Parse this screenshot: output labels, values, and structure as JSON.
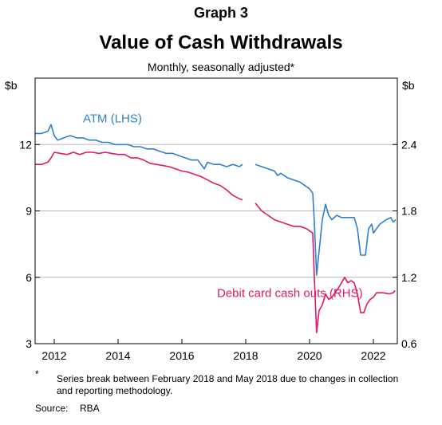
{
  "header": {
    "graph_number": "Graph 3",
    "title": "Value of Cash Withdrawals",
    "subtitle": "Monthly, seasonally adjusted*"
  },
  "footnote": {
    "marker": "*",
    "text": "Series break between February 2018 and May 2018 due to changes in collection and reporting methodology."
  },
  "source": {
    "label": "Source:",
    "text": "RBA"
  },
  "chart_data": {
    "type": "line",
    "title": "Value of Cash Withdrawals",
    "subtitle": "Monthly, seasonally adjusted*",
    "x_range": [
      2011.4,
      2022.75
    ],
    "x_ticks": [
      2012,
      2014,
      2016,
      2018,
      2020,
      2022
    ],
    "x_tick_labels": [
      "2012",
      "2014",
      "2016",
      "2018",
      "2020",
      "2022"
    ],
    "left_axis": {
      "unit": "$b",
      "range": [
        3,
        15
      ],
      "ticks": [
        3,
        6,
        9,
        12
      ],
      "tick_labels": [
        "3",
        "6",
        "9",
        "12"
      ]
    },
    "right_axis": {
      "unit": "$b",
      "range": [
        0.6,
        3.0
      ],
      "ticks": [
        0.6,
        1.2,
        1.8,
        2.4
      ],
      "tick_labels": [
        "0.6",
        "1.2",
        "1.8",
        "2.4"
      ]
    },
    "grid": true,
    "colors": {
      "atm": "#2f80d0",
      "debit": "#e0186b",
      "grid": "#b8b8b8"
    },
    "series": [
      {
        "name": "ATM (LHS)",
        "axis": "left",
        "color": "#2f80d0",
        "segments": [
          [
            [
              2011.4,
              12.5
            ],
            [
              2011.6,
              12.5
            ],
            [
              2011.8,
              12.6
            ],
            [
              2011.9,
              12.9
            ],
            [
              2012.0,
              12.4
            ],
            [
              2012.1,
              12.2
            ],
            [
              2012.3,
              12.3
            ],
            [
              2012.5,
              12.4
            ],
            [
              2012.7,
              12.3
            ],
            [
              2012.9,
              12.3
            ],
            [
              2013.1,
              12.2
            ],
            [
              2013.3,
              12.2
            ],
            [
              2013.5,
              12.1
            ],
            [
              2013.7,
              12.1
            ],
            [
              2013.9,
              12.0
            ],
            [
              2014.1,
              12.0
            ],
            [
              2014.3,
              12.0
            ],
            [
              2014.5,
              11.9
            ],
            [
              2014.7,
              11.9
            ],
            [
              2014.9,
              11.8
            ],
            [
              2015.1,
              11.8
            ],
            [
              2015.3,
              11.7
            ],
            [
              2015.5,
              11.6
            ],
            [
              2015.7,
              11.6
            ],
            [
              2015.9,
              11.5
            ],
            [
              2016.1,
              11.4
            ],
            [
              2016.3,
              11.3
            ],
            [
              2016.5,
              11.3
            ],
            [
              2016.6,
              11.1
            ],
            [
              2016.7,
              10.9
            ],
            [
              2016.8,
              11.2
            ],
            [
              2017.0,
              11.1
            ],
            [
              2017.2,
              11.1
            ],
            [
              2017.4,
              11.0
            ],
            [
              2017.6,
              11.1
            ],
            [
              2017.8,
              11.0
            ],
            [
              2017.9,
              11.1
            ]
          ],
          [
            [
              2018.3,
              11.1
            ],
            [
              2018.5,
              11.0
            ],
            [
              2018.7,
              10.9
            ],
            [
              2018.9,
              10.8
            ],
            [
              2019.0,
              10.6
            ],
            [
              2019.1,
              10.7
            ],
            [
              2019.3,
              10.5
            ],
            [
              2019.5,
              10.4
            ],
            [
              2019.7,
              10.3
            ],
            [
              2019.9,
              10.1
            ],
            [
              2020.0,
              10.0
            ],
            [
              2020.1,
              9.8
            ],
            [
              2020.15,
              8.5
            ],
            [
              2020.22,
              6.1
            ],
            [
              2020.3,
              7.2
            ],
            [
              2020.4,
              8.6
            ],
            [
              2020.5,
              9.3
            ],
            [
              2020.6,
              8.8
            ],
            [
              2020.7,
              8.6
            ],
            [
              2020.85,
              8.8
            ],
            [
              2021.0,
              8.7
            ],
            [
              2021.2,
              8.7
            ],
            [
              2021.4,
              8.7
            ],
            [
              2021.5,
              8.2
            ],
            [
              2021.6,
              7.0
            ],
            [
              2021.75,
              7.0
            ],
            [
              2021.85,
              8.2
            ],
            [
              2021.95,
              8.4
            ],
            [
              2022.0,
              8.0
            ],
            [
              2022.2,
              8.4
            ],
            [
              2022.4,
              8.6
            ],
            [
              2022.55,
              8.7
            ],
            [
              2022.62,
              8.5
            ],
            [
              2022.7,
              8.6
            ]
          ]
        ]
      },
      {
        "name": "Debit card cash outs (RHS)",
        "axis": "right",
        "color": "#e0186b",
        "segments": [
          [
            [
              2011.4,
              2.22
            ],
            [
              2011.6,
              2.22
            ],
            [
              2011.8,
              2.24
            ],
            [
              2011.9,
              2.28
            ],
            [
              2012.0,
              2.33
            ],
            [
              2012.2,
              2.32
            ],
            [
              2012.4,
              2.31
            ],
            [
              2012.6,
              2.33
            ],
            [
              2012.8,
              2.31
            ],
            [
              2013.0,
              2.33
            ],
            [
              2013.2,
              2.33
            ],
            [
              2013.4,
              2.32
            ],
            [
              2013.6,
              2.33
            ],
            [
              2013.8,
              2.32
            ],
            [
              2014.0,
              2.31
            ],
            [
              2014.2,
              2.31
            ],
            [
              2014.4,
              2.28
            ],
            [
              2014.6,
              2.28
            ],
            [
              2014.8,
              2.26
            ],
            [
              2015.0,
              2.23
            ],
            [
              2015.2,
              2.22
            ],
            [
              2015.4,
              2.21
            ],
            [
              2015.6,
              2.2
            ],
            [
              2015.8,
              2.18
            ],
            [
              2016.0,
              2.16
            ],
            [
              2016.2,
              2.15
            ],
            [
              2016.4,
              2.13
            ],
            [
              2016.6,
              2.11
            ],
            [
              2016.8,
              2.08
            ],
            [
              2017.0,
              2.05
            ],
            [
              2017.2,
              2.03
            ],
            [
              2017.4,
              1.99
            ],
            [
              2017.6,
              1.94
            ],
            [
              2017.8,
              1.91
            ],
            [
              2017.9,
              1.9
            ]
          ],
          [
            [
              2018.3,
              1.87
            ],
            [
              2018.5,
              1.8
            ],
            [
              2018.7,
              1.76
            ],
            [
              2018.9,
              1.72
            ],
            [
              2019.1,
              1.7
            ],
            [
              2019.3,
              1.68
            ],
            [
              2019.5,
              1.66
            ],
            [
              2019.7,
              1.66
            ],
            [
              2019.9,
              1.64
            ],
            [
              2020.1,
              1.6
            ],
            [
              2020.15,
              1.2
            ],
            [
              2020.22,
              0.7
            ],
            [
              2020.3,
              0.9
            ],
            [
              2020.4,
              0.95
            ],
            [
              2020.5,
              1.05
            ],
            [
              2020.6,
              1.0
            ],
            [
              2020.7,
              1.02
            ],
            [
              2020.8,
              1.06
            ],
            [
              2020.9,
              1.1
            ],
            [
              2021.0,
              1.15
            ],
            [
              2021.1,
              1.2
            ],
            [
              2021.2,
              1.15
            ],
            [
              2021.3,
              1.17
            ],
            [
              2021.4,
              1.15
            ],
            [
              2021.5,
              1.05
            ],
            [
              2021.6,
              0.88
            ],
            [
              2021.7,
              0.88
            ],
            [
              2021.8,
              0.96
            ],
            [
              2021.9,
              1.0
            ],
            [
              2022.0,
              1.02
            ],
            [
              2022.1,
              1.06
            ],
            [
              2022.3,
              1.06
            ],
            [
              2022.5,
              1.05
            ],
            [
              2022.62,
              1.06
            ],
            [
              2022.68,
              1.08
            ]
          ]
        ]
      }
    ],
    "annotations": [
      {
        "text": "ATM (LHS)",
        "series": "ATM (LHS)",
        "x": 2012.9,
        "y": 13.0,
        "axis": "left"
      },
      {
        "text": "Debit card cash outs (RHS)",
        "series": "Debit card cash outs (RHS)",
        "x": 2017.1,
        "y": 1.02,
        "axis": "right"
      }
    ]
  }
}
